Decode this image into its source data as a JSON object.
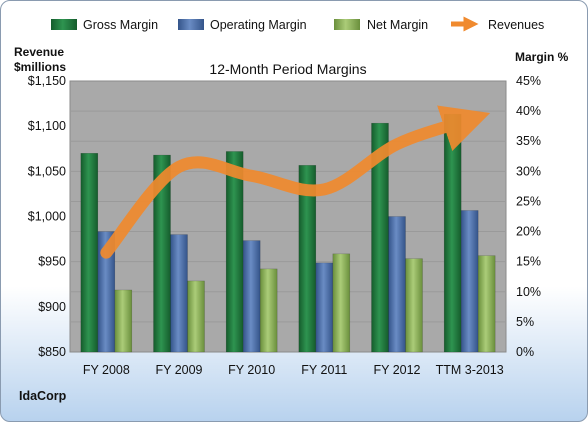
{
  "company": "IdaCorp",
  "colors": {
    "gross": "#1f7a3d",
    "operating": "#4a6ea8",
    "net": "#8db35a",
    "revenue": "#f08a2e",
    "plot_bg": "#a9a9a9"
  },
  "chart_data": {
    "type": "bar",
    "title": "12-Month Period Margins",
    "categories": [
      "FY 2008",
      "FY 2009",
      "FY 2010",
      "FY 2011",
      "FY 2012",
      "TTM 3-2013"
    ],
    "series": [
      {
        "name": "Gross Margin",
        "axis": "right",
        "values": [
          33.0,
          32.7,
          33.3,
          31.0,
          38.0,
          39.5
        ]
      },
      {
        "name": "Operating Margin",
        "axis": "right",
        "values": [
          20.0,
          19.5,
          18.5,
          14.8,
          22.5,
          23.5
        ]
      },
      {
        "name": "Net Margin",
        "axis": "right",
        "values": [
          10.3,
          11.8,
          13.8,
          16.3,
          15.5,
          16.0
        ]
      },
      {
        "name": "Revenues",
        "type": "line",
        "axis": "left",
        "values": [
          960,
          1055,
          1045,
          1030,
          1080,
          1107
        ]
      }
    ],
    "y_left": {
      "label_line1": "Revenue",
      "label_line2": "$millions",
      "min": 850,
      "max": 1150,
      "ticks": [
        "$850",
        "$900",
        "$950",
        "$1,000",
        "$1,050",
        "$1,100",
        "$1,150"
      ]
    },
    "y_right": {
      "label": "Margin %",
      "min": 0,
      "max": 45,
      "ticks": [
        "0%",
        "5%",
        "10%",
        "15%",
        "20%",
        "25%",
        "30%",
        "35%",
        "40%",
        "45%"
      ]
    },
    "legend_position": "top",
    "grid": true
  }
}
